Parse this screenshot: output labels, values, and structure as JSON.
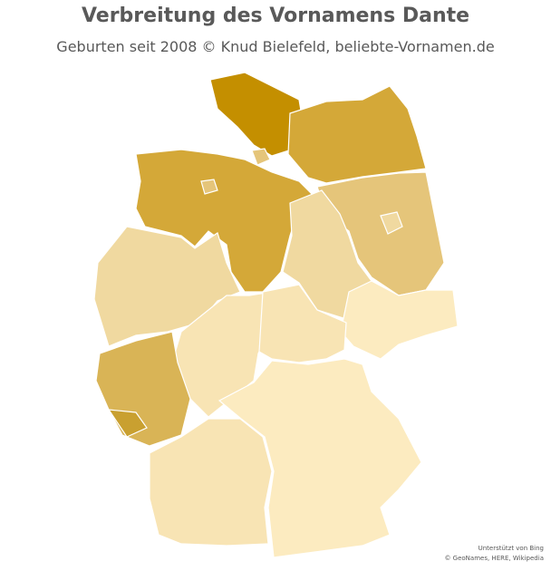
{
  "header": {
    "title": "Verbreitung des Vornamens Dante",
    "subtitle": "Geburten seit 2008 © Knud Bielefeld,  beliebte-Vornamen.de"
  },
  "attribution": {
    "line1": "Unterstützt von Bing",
    "line2": "© GeoNames, HERE, Wikipedia"
  }
}
